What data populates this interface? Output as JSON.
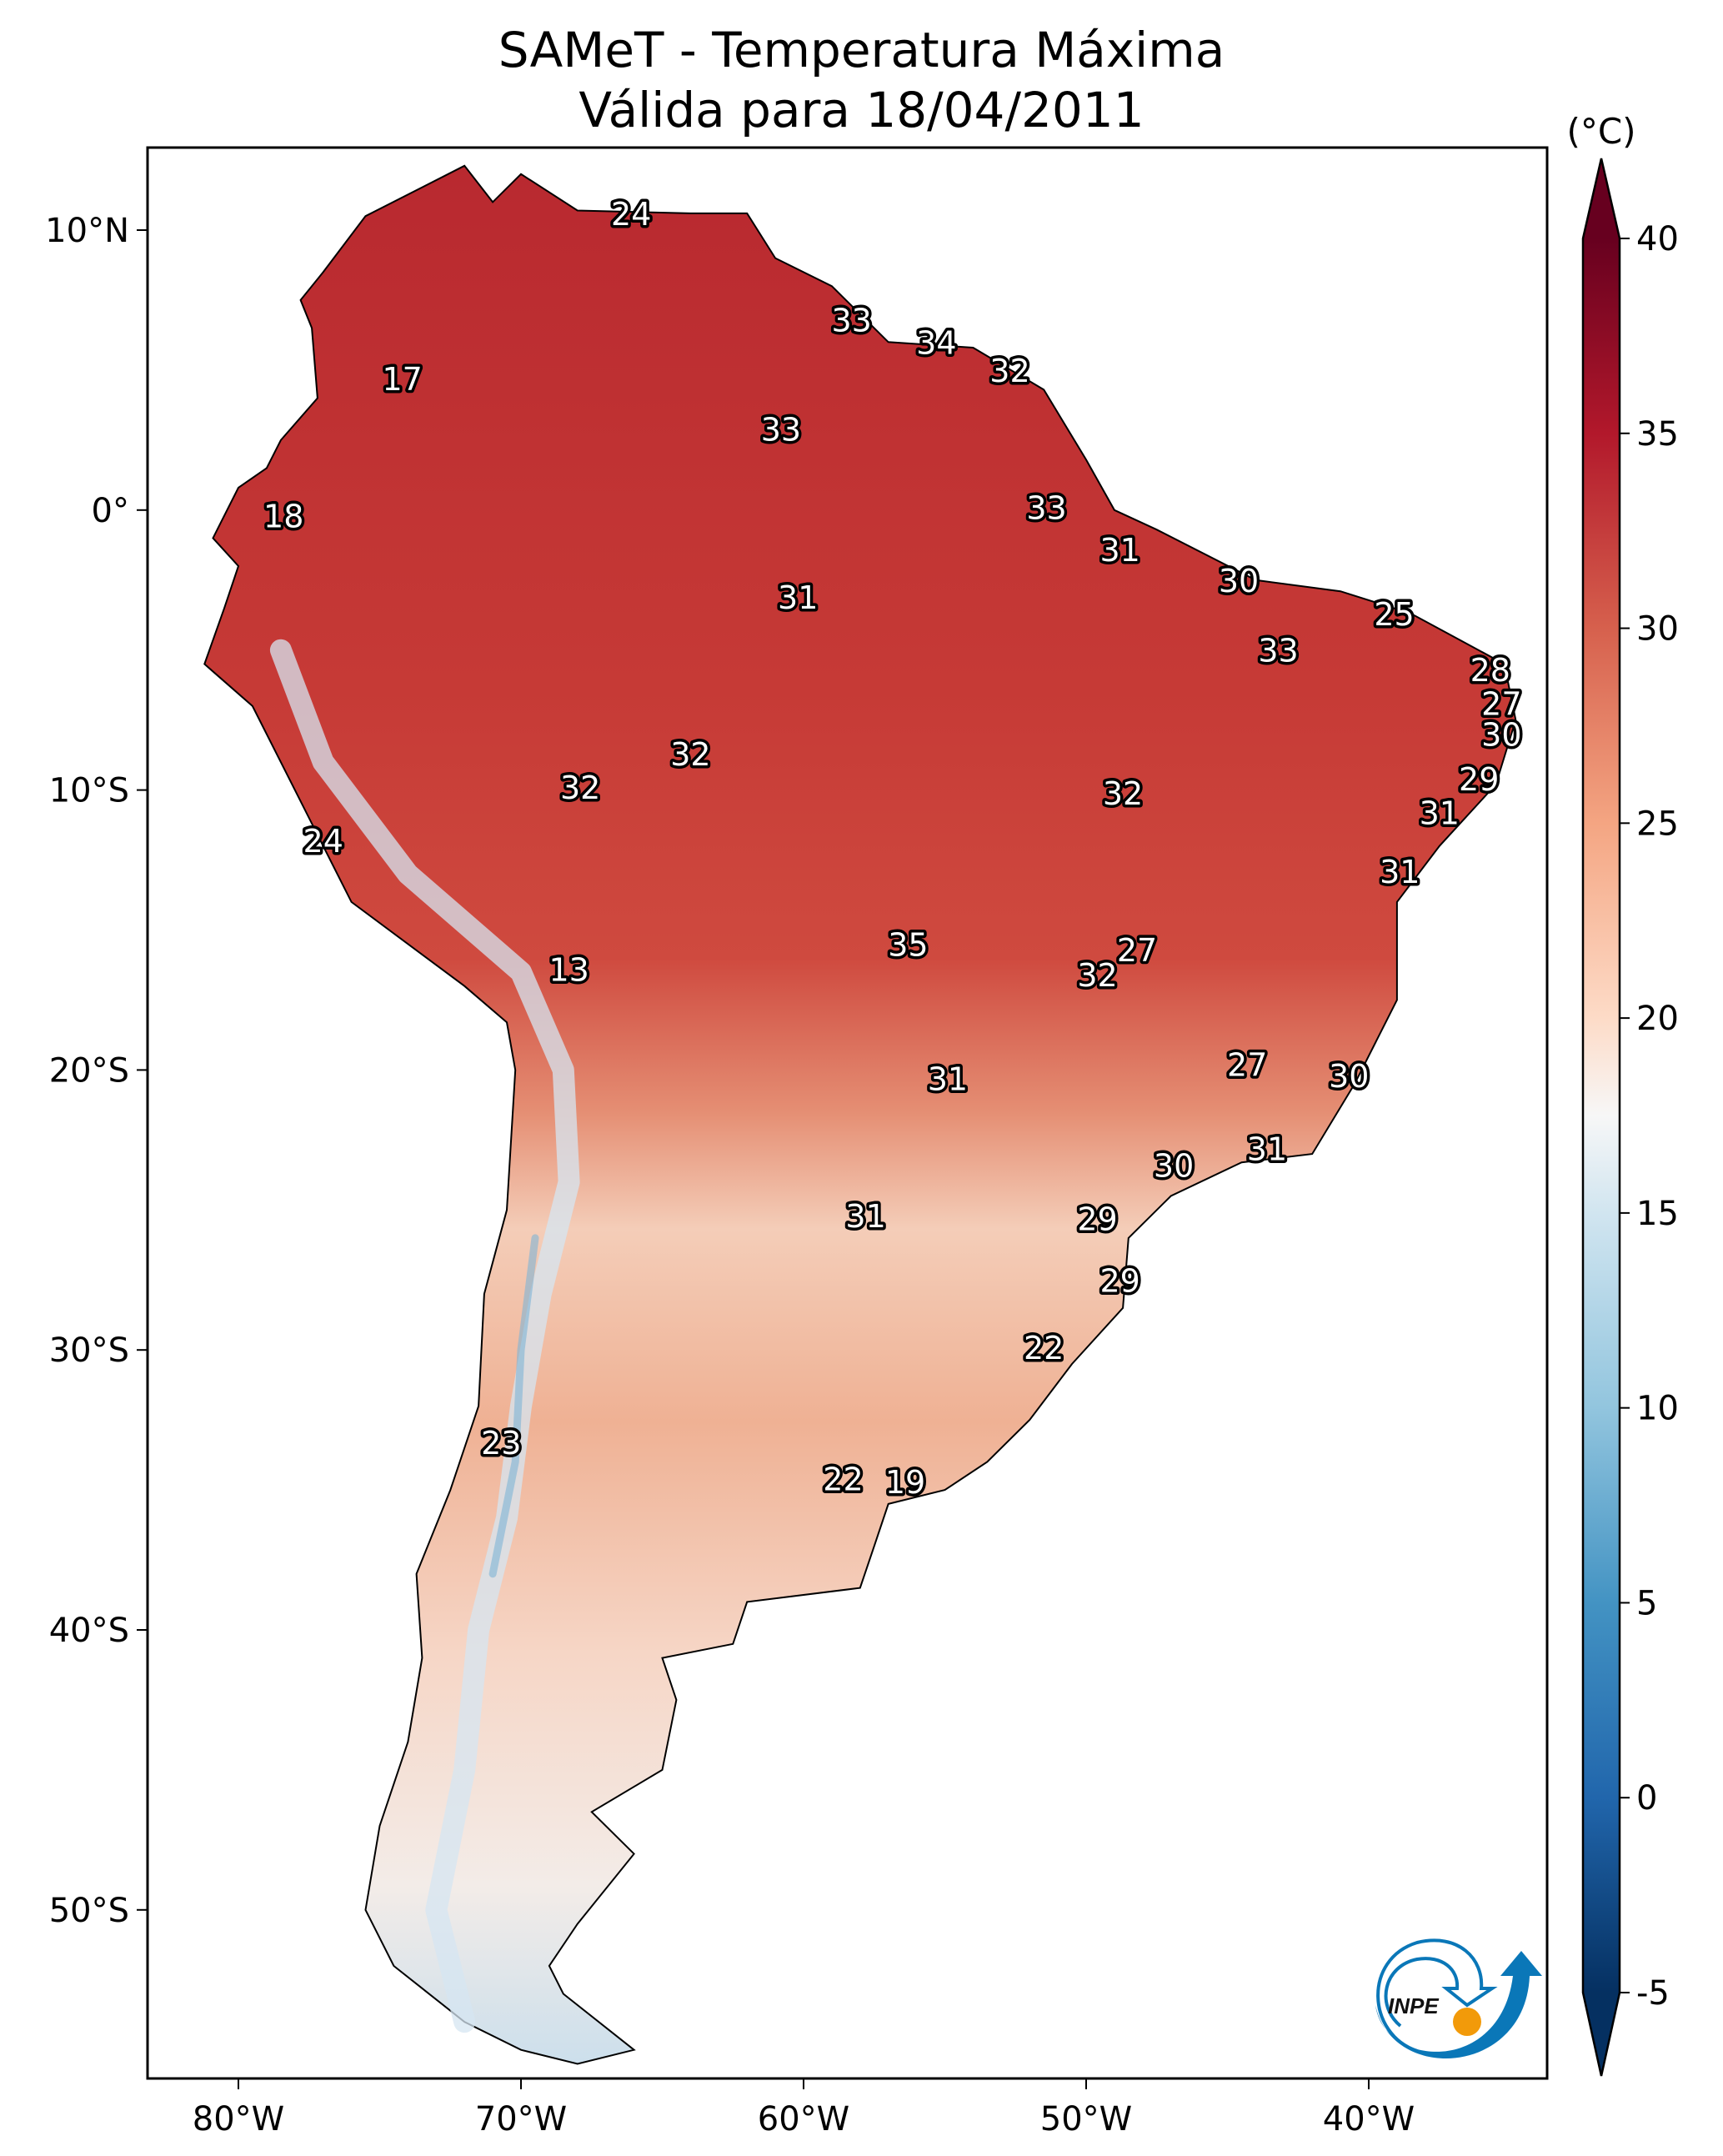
{
  "title": {
    "line1": "SAMeT - Temperatura Máxima",
    "line2": "Válida para 18/04/2011"
  },
  "chart_data": {
    "type": "heatmap",
    "map_extent": {
      "lon": [
        -83.2,
        -33.7
      ],
      "lat": [
        -56.0,
        12.9
      ]
    },
    "x_ticks": [
      {
        "lon": -80,
        "label": "80°W"
      },
      {
        "lon": -70,
        "label": "70°W"
      },
      {
        "lon": -60,
        "label": "60°W"
      },
      {
        "lon": -50,
        "label": "50°W"
      },
      {
        "lon": -40,
        "label": "40°W"
      }
    ],
    "y_ticks": [
      {
        "lat": 10,
        "label": "10°N"
      },
      {
        "lat": 0,
        "label": "0°"
      },
      {
        "lat": -10,
        "label": "10°S"
      },
      {
        "lat": -20,
        "label": "20°S"
      },
      {
        "lat": -30,
        "label": "30°S"
      },
      {
        "lat": -40,
        "label": "40°S"
      },
      {
        "lat": -50,
        "label": "50°S"
      }
    ],
    "colorbar": {
      "unit": "(°C)",
      "range": [
        -5,
        40
      ],
      "extend": "both",
      "colormap": "RdBu_r",
      "ticks": [
        {
          "v": 40,
          "label": "40"
        },
        {
          "v": 35,
          "label": "35"
        },
        {
          "v": 30,
          "label": "30"
        },
        {
          "v": 25,
          "label": "25"
        },
        {
          "v": 20,
          "label": "20"
        },
        {
          "v": 15,
          "label": "15"
        },
        {
          "v": 10,
          "label": "10"
        },
        {
          "v": 5,
          "label": "5"
        },
        {
          "v": 0,
          "label": "0"
        },
        {
          "v": -5,
          "label": "-5"
        }
      ],
      "stops": [
        [
          -5,
          "#053061"
        ],
        [
          0,
          "#2166ac"
        ],
        [
          5,
          "#4393c3"
        ],
        [
          10,
          "#92c5de"
        ],
        [
          15,
          "#d1e5f0"
        ],
        [
          17.5,
          "#f7f7f7"
        ],
        [
          20,
          "#fddbc7"
        ],
        [
          25,
          "#f4a582"
        ],
        [
          30,
          "#d6604d"
        ],
        [
          35,
          "#b2182b"
        ],
        [
          40,
          "#67001f"
        ]
      ]
    },
    "station_labels": [
      {
        "lon": -66.1,
        "lat": 10.6,
        "value": "24"
      },
      {
        "lon": -58.3,
        "lat": 6.8,
        "value": "33"
      },
      {
        "lon": -55.3,
        "lat": 6.0,
        "value": "34"
      },
      {
        "lon": -52.7,
        "lat": 5.0,
        "value": "32"
      },
      {
        "lon": -74.2,
        "lat": 4.7,
        "value": "17"
      },
      {
        "lon": -60.8,
        "lat": 2.9,
        "value": "33"
      },
      {
        "lon": -78.4,
        "lat": -0.2,
        "value": "18"
      },
      {
        "lon": -51.4,
        "lat": 0.1,
        "value": "33"
      },
      {
        "lon": -48.8,
        "lat": -1.4,
        "value": "31"
      },
      {
        "lon": -44.6,
        "lat": -2.5,
        "value": "30"
      },
      {
        "lon": -60.2,
        "lat": -3.1,
        "value": "31"
      },
      {
        "lon": -39.1,
        "lat": -3.7,
        "value": "25"
      },
      {
        "lon": -43.2,
        "lat": -5.0,
        "value": "33"
      },
      {
        "lon": -35.7,
        "lat": -5.7,
        "value": "28"
      },
      {
        "lon": -35.3,
        "lat": -6.9,
        "value": "27"
      },
      {
        "lon": -35.3,
        "lat": -8.0,
        "value": "30"
      },
      {
        "lon": -64.0,
        "lat": -8.7,
        "value": "32"
      },
      {
        "lon": -36.1,
        "lat": -9.6,
        "value": "29"
      },
      {
        "lon": -67.9,
        "lat": -9.9,
        "value": "32"
      },
      {
        "lon": -48.7,
        "lat": -10.1,
        "value": "32"
      },
      {
        "lon": -37.5,
        "lat": -10.8,
        "value": "31"
      },
      {
        "lon": -77.0,
        "lat": -11.8,
        "value": "24"
      },
      {
        "lon": -38.9,
        "lat": -12.9,
        "value": "31"
      },
      {
        "lon": -56.3,
        "lat": -15.5,
        "value": "35"
      },
      {
        "lon": -48.2,
        "lat": -15.7,
        "value": "27"
      },
      {
        "lon": -68.3,
        "lat": -16.4,
        "value": "13"
      },
      {
        "lon": -49.6,
        "lat": -16.6,
        "value": "32"
      },
      {
        "lon": -44.3,
        "lat": -19.8,
        "value": "27"
      },
      {
        "lon": -40.7,
        "lat": -20.2,
        "value": "30"
      },
      {
        "lon": -54.9,
        "lat": -20.3,
        "value": "31"
      },
      {
        "lon": -43.6,
        "lat": -22.8,
        "value": "31"
      },
      {
        "lon": -46.9,
        "lat": -23.4,
        "value": "30"
      },
      {
        "lon": -57.8,
        "lat": -25.2,
        "value": "31"
      },
      {
        "lon": -49.6,
        "lat": -25.3,
        "value": "29"
      },
      {
        "lon": -48.8,
        "lat": -27.5,
        "value": "29"
      },
      {
        "lon": -51.5,
        "lat": -29.9,
        "value": "22"
      },
      {
        "lon": -70.7,
        "lat": -33.3,
        "value": "23"
      },
      {
        "lon": -58.6,
        "lat": -34.6,
        "value": "22"
      },
      {
        "lon": -56.4,
        "lat": -34.7,
        "value": "19"
      }
    ]
  },
  "logo": {
    "text": "INPE",
    "colors": {
      "blue": "#0a77b8",
      "orange": "#f29a0a"
    }
  }
}
